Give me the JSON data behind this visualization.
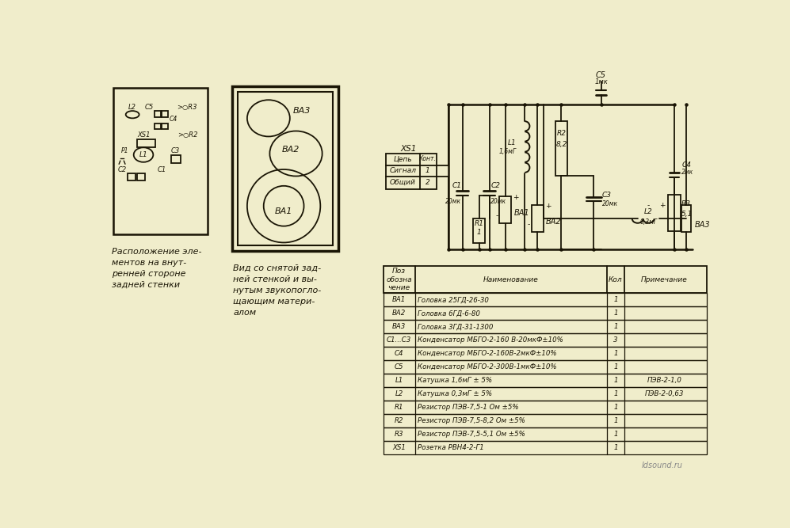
{
  "bg_color": "#f0edcb",
  "line_color": "#1a1505",
  "table_headers": [
    "Поз\nобозна\nчение",
    "Наименование",
    "Кол",
    "Примечание"
  ],
  "table_rows": [
    [
      "ВА1",
      "Головка 25ГД-26-30",
      "1",
      ""
    ],
    [
      "ВА2",
      "Головка 6ГД-6-80",
      "1",
      ""
    ],
    [
      "ВА3",
      "Головка 3ГД-31-1300",
      "1",
      ""
    ],
    [
      "С1...С3",
      "Конденсатор МБГО-2-160 В-20мкФ±10%",
      "3",
      ""
    ],
    [
      "С4",
      "Конденсатор МБГО-2-160В-2мкФ±10%",
      "1",
      ""
    ],
    [
      "С5",
      "Конденсатор МБГО-2-300В-1мкФ±10%",
      "1",
      ""
    ],
    [
      "L1",
      "Катушка 1,6мГ ± 5%",
      "1",
      "ПЭВ-2-1,0"
    ],
    [
      "L2",
      "Катушка 0,3мГ ± 5%",
      "1",
      "ПЭВ-2-0,63"
    ],
    [
      "R1",
      "Резистор ПЭВ-7,5-1 Ом ±5%",
      "1",
      ""
    ],
    [
      "R2",
      "Резистор ПЭВ-7,5-8,2 Ом ±5%",
      "1",
      ""
    ],
    [
      "R3",
      "Резистор ПЭВ-7,5-5,1 Ом ±5%",
      "1",
      ""
    ],
    [
      "XS1",
      "Розетка РВН4-2-Г1",
      "1",
      ""
    ]
  ],
  "caption_left": "Расположение эле-\nментов на внут-\nренней стороне\nзадней стенки",
  "caption_right": "Вид со снятой зад-\nней стенкой и вы-\nнутым звукопогло-\nщающим матери-\nалом",
  "watermark": "ldsound.ru",
  "xs1_label": "XS1",
  "xs1_cols": [
    "Цепь",
    "Конт."
  ],
  "xs1_rows": [
    [
      "Сигнал",
      "1"
    ],
    [
      "Общий",
      "2"
    ]
  ]
}
